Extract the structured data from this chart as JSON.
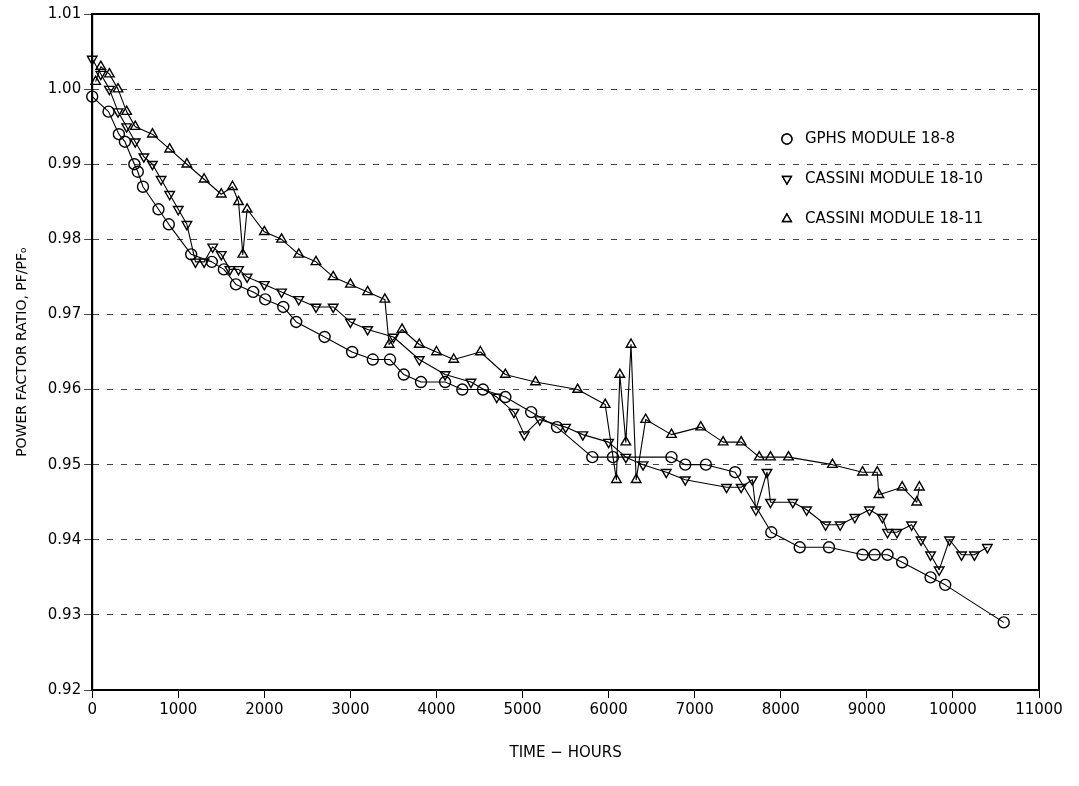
{
  "chart_data": {
    "type": "line",
    "xlabel": "TIME − HOURS",
    "ylabel": "POWER FACTOR RATIO, PF/PFₒ",
    "xlim": [
      0,
      11000
    ],
    "xticks": [
      0,
      1000,
      2000,
      3000,
      4000,
      5000,
      6000,
      7000,
      8000,
      9000,
      10000,
      11000
    ],
    "ylim": [
      0.92,
      1.01
    ],
    "yticks": [
      0.92,
      0.93,
      0.94,
      0.95,
      0.96,
      0.97,
      0.98,
      0.99,
      {
        "value": 1,
        "label": "1.00"
      },
      1.01
    ],
    "grid": "y",
    "legend": "top right",
    "series": [
      {
        "name": "GPHS MODULE 18-8",
        "color": "#000000",
        "marker": "circle",
        "x": [
          0,
          190,
          310,
          380,
          490,
          530,
          590,
          770,
          890,
          1150,
          1390,
          1530,
          1670,
          1870,
          2010,
          2220,
          2370,
          2700,
          3020,
          3260,
          3460,
          3620,
          3820,
          4100,
          4300,
          4540,
          4800,
          5100,
          5400,
          5810,
          6050,
          6730,
          6890,
          7130,
          7470,
          7890,
          8220,
          8560,
          8950,
          9090,
          9240,
          9410,
          9740,
          9910,
          10590
        ],
        "values": [
          0.999,
          0.997,
          0.994,
          0.993,
          0.99,
          0.989,
          0.987,
          0.984,
          0.982,
          0.978,
          0.977,
          0.976,
          0.974,
          0.973,
          0.972,
          0.971,
          0.969,
          0.967,
          0.965,
          0.964,
          0.964,
          0.962,
          0.961,
          0.961,
          0.96,
          0.96,
          0.959,
          0.957,
          0.955,
          0.951,
          0.951,
          0.951,
          0.95,
          0.95,
          0.949,
          0.941,
          0.939,
          0.939,
          0.938,
          0.938,
          0.938,
          0.937,
          0.935,
          0.934,
          0.929
        ]
      },
      {
        "name": "CASSINI MODULE 18-10",
        "color": "#000000",
        "marker": "triangle-down",
        "x": [
          0,
          100,
          200,
          300,
          400,
          500,
          600,
          700,
          800,
          900,
          1000,
          1100,
          1200,
          1300,
          1400,
          1500,
          1600,
          1700,
          1800,
          2000,
          2200,
          2400,
          2600,
          2800,
          3000,
          3200,
          3500,
          3800,
          4100,
          4400,
          4700,
          4900,
          5020,
          5200,
          5500,
          5700,
          6000,
          6200,
          6400,
          6670,
          6890,
          7370,
          7540,
          7670,
          7710,
          7840,
          7880,
          8140,
          8300,
          8520,
          8690,
          8860,
          9030,
          9180,
          9240,
          9350,
          9520,
          9630,
          9740,
          9840,
          9960,
          10100,
          10250,
          10400
        ],
        "values": [
          1.004,
          1.002,
          1.0,
          0.997,
          0.995,
          0.993,
          0.991,
          0.99,
          0.988,
          0.986,
          0.984,
          0.982,
          0.977,
          0.977,
          0.979,
          0.978,
          0.976,
          0.976,
          0.975,
          0.974,
          0.973,
          0.972,
          0.971,
          0.971,
          0.969,
          0.968,
          0.967,
          0.964,
          0.962,
          0.961,
          0.959,
          0.957,
          0.954,
          0.956,
          0.955,
          0.954,
          0.953,
          0.951,
          0.95,
          0.949,
          0.948,
          0.947,
          0.947,
          0.948,
          0.944,
          0.949,
          0.945,
          0.945,
          0.944,
          0.942,
          0.942,
          0.943,
          0.944,
          0.943,
          0.941,
          0.941,
          0.942,
          0.94,
          0.938,
          0.936,
          0.94,
          0.938,
          0.938,
          0.939
        ]
      },
      {
        "name": "CASSINI MODULE 18-11",
        "color": "#000000",
        "marker": "triangle",
        "x": [
          40,
          100,
          200,
          300,
          400,
          500,
          700,
          900,
          1100,
          1300,
          1500,
          1630,
          1700,
          1750,
          1800,
          2000,
          2200,
          2400,
          2600,
          2800,
          3000,
          3200,
          3400,
          3450,
          3600,
          3800,
          4000,
          4200,
          4510,
          4800,
          5150,
          5640,
          5960,
          6090,
          6130,
          6200,
          6260,
          6320,
          6430,
          6730,
          7070,
          7330,
          7540,
          7750,
          7880,
          8090,
          8600,
          8950,
          9120,
          9140,
          9410,
          9580,
          9610
        ],
        "values": [
          1.001,
          1.003,
          1.002,
          1.0,
          0.997,
          0.995,
          0.994,
          0.992,
          0.99,
          0.988,
          0.986,
          0.987,
          0.985,
          0.978,
          0.984,
          0.981,
          0.98,
          0.978,
          0.977,
          0.975,
          0.974,
          0.973,
          0.972,
          0.966,
          0.968,
          0.966,
          0.965,
          0.964,
          0.965,
          0.962,
          0.961,
          0.96,
          0.958,
          0.948,
          0.962,
          0.953,
          0.966,
          0.948,
          0.956,
          0.954,
          0.955,
          0.953,
          0.953,
          0.951,
          0.951,
          0.951,
          0.95,
          0.949,
          0.949,
          0.946,
          0.947,
          0.945,
          0.947
        ]
      }
    ]
  }
}
